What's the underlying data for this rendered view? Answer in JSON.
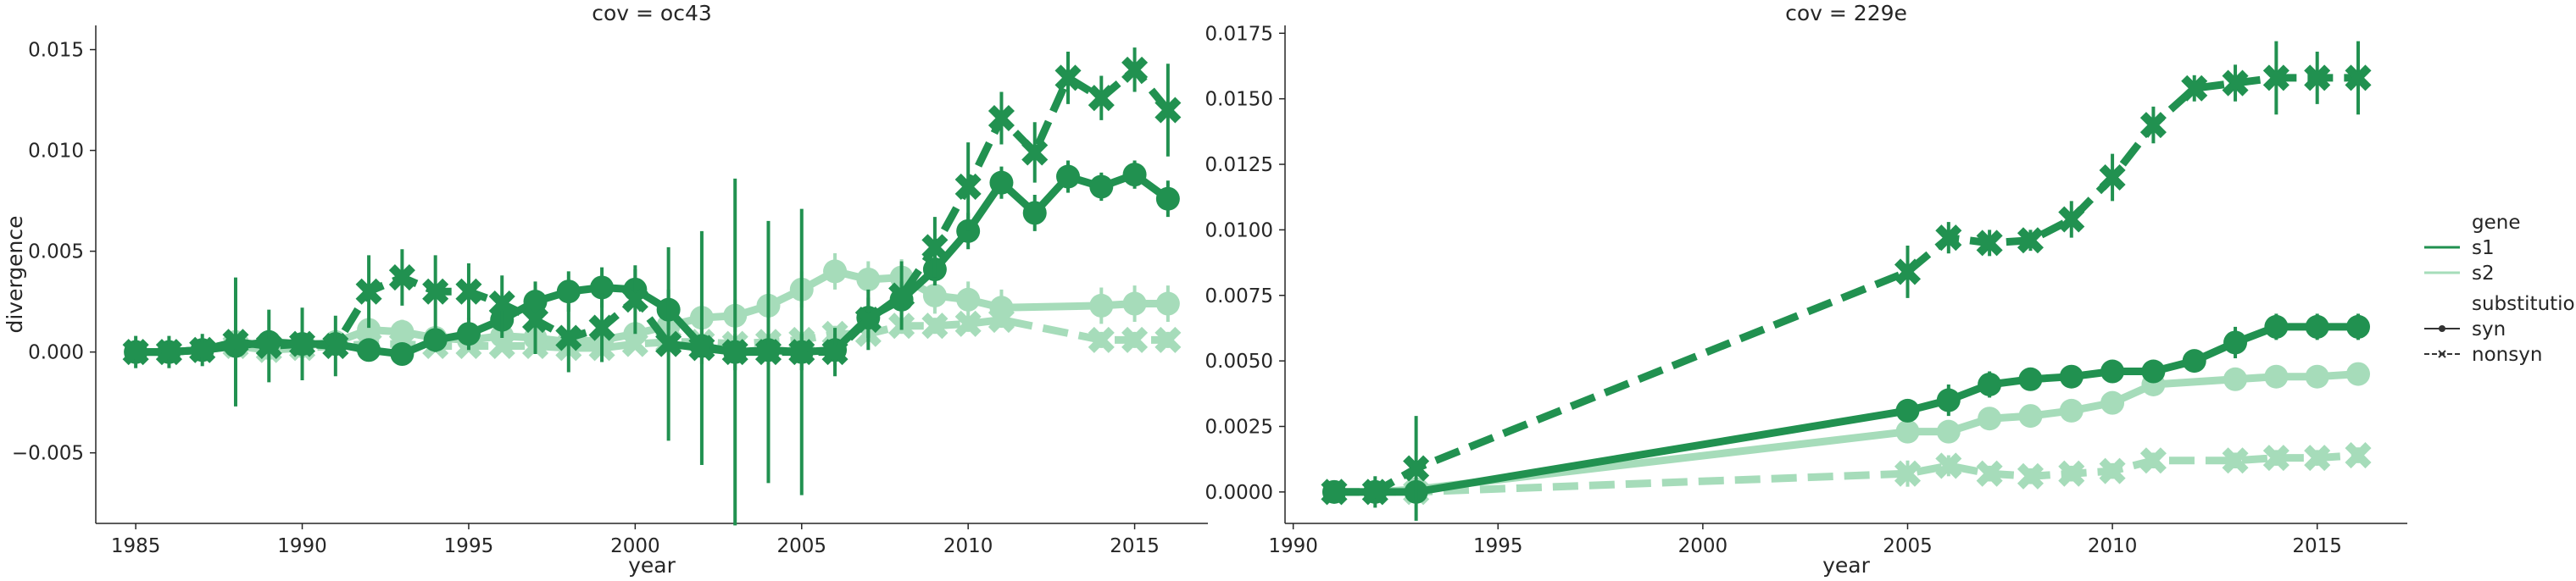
{
  "colors": {
    "s1": "#219150",
    "s2": "#a6dcba",
    "axis": "#262626"
  },
  "legend": {
    "gene_title": "gene",
    "gene_items": [
      {
        "label": "s1",
        "color": "#219150"
      },
      {
        "label": "s2",
        "color": "#a6dcba"
      }
    ],
    "substitution_title": "substitution",
    "substitution_items": [
      {
        "label": "syn",
        "style": "solid-dot"
      },
      {
        "label": "nonsyn",
        "style": "dashed-x"
      }
    ]
  },
  "chart_data": [
    {
      "type": "line",
      "title": "cov = oc43",
      "xlabel": "year",
      "ylabel": "divergence",
      "xlim": [
        1983.8,
        2017.2
      ],
      "ylim": [
        -0.0085,
        0.0162
      ],
      "xticks": [
        1985,
        1990,
        1995,
        2000,
        2005,
        2010,
        2015
      ],
      "yticks": [
        -0.005,
        0.0,
        0.005,
        0.01,
        0.015
      ],
      "ytick_labels": [
        "−0.005",
        "0.000",
        "0.005",
        "0.010",
        "0.015"
      ],
      "grid": false,
      "series": [
        {
          "gene": "s2",
          "substitution": "syn",
          "x": [
            1985,
            1986,
            1987,
            1988,
            1989,
            1990,
            1991,
            1992,
            1993,
            1994,
            1995,
            1996,
            1997,
            1998,
            1999,
            2000,
            2001,
            2002,
            2003,
            2004,
            2005,
            2006,
            2007,
            2008,
            2009,
            2010,
            2011,
            2014,
            2015,
            2016
          ],
          "y": [
            0.0,
            0.0,
            0.0001,
            0.0005,
            0.0002,
            0.0003,
            0.0005,
            0.0011,
            0.001,
            0.0007,
            0.0006,
            0.0008,
            0.0007,
            0.0005,
            0.0006,
            0.0009,
            0.0013,
            0.0017,
            0.0018,
            0.0023,
            0.0031,
            0.004,
            0.0036,
            0.0037,
            0.0028,
            0.0026,
            0.0022,
            0.0023,
            0.0024,
            0.0024
          ],
          "err": [
            0.0003,
            0.0003,
            0.0003,
            0.0005,
            0.0003,
            0.0003,
            0.0004,
            0.0006,
            0.0006,
            0.0005,
            0.0005,
            0.0005,
            0.0005,
            0.0005,
            0.0005,
            0.0006,
            0.0007,
            0.0008,
            0.0008,
            0.0009,
            0.0009,
            0.0009,
            0.0009,
            0.0009,
            0.0009,
            0.0009,
            0.0009,
            0.0009,
            0.0009,
            0.0009
          ]
        },
        {
          "gene": "s2",
          "substitution": "nonsyn",
          "x": [
            1985,
            1986,
            1987,
            1988,
            1989,
            1990,
            1991,
            1992,
            1993,
            1994,
            1995,
            1996,
            1997,
            1998,
            1999,
            2000,
            2001,
            2002,
            2003,
            2004,
            2005,
            2006,
            2007,
            2008,
            2009,
            2010,
            2011,
            2014,
            2015,
            2016
          ],
          "y": [
            0.0,
            0.0,
            0.0001,
            0.0003,
            0.0001,
            0.0002,
            0.0003,
            0.0004,
            0.0004,
            0.0003,
            0.0003,
            0.0003,
            0.0003,
            0.0002,
            0.0002,
            0.0004,
            0.0005,
            0.0005,
            0.0004,
            0.0005,
            0.0006,
            0.0009,
            0.0009,
            0.0013,
            0.0013,
            0.0014,
            0.0016,
            0.0006,
            0.0006,
            0.0006
          ],
          "err": [
            0.0002,
            0.0002,
            0.0002,
            0.0003,
            0.0002,
            0.0002,
            0.0003,
            0.0003,
            0.0003,
            0.0003,
            0.0003,
            0.0003,
            0.0003,
            0.0003,
            0.0003,
            0.0003,
            0.0003,
            0.0003,
            0.0003,
            0.0003,
            0.0004,
            0.0004,
            0.0004,
            0.0004,
            0.0004,
            0.0004,
            0.0004,
            0.0004,
            0.0004,
            0.0004
          ]
        },
        {
          "gene": "s1",
          "substitution": "syn",
          "x": [
            1985,
            1986,
            1987,
            1988,
            1989,
            1990,
            1991,
            1992,
            1993,
            1994,
            1995,
            1996,
            1997,
            1998,
            1999,
            2000,
            2001,
            2002,
            2003,
            2004,
            2005,
            2006,
            2007,
            2008,
            2009,
            2010,
            2011,
            2012,
            2013,
            2014,
            2015,
            2016
          ],
          "y": [
            0.0,
            0.0,
            0.0001,
            0.0003,
            0.0005,
            0.0004,
            0.0004,
            0.0001,
            -0.0001,
            0.0006,
            0.0009,
            0.0016,
            0.0025,
            0.003,
            0.0032,
            0.0031,
            0.0021,
            0.0003,
            0.0,
            0.0001,
            0.0,
            0.0001,
            0.0017,
            0.0026,
            0.0041,
            0.006,
            0.0084,
            0.0069,
            0.0087,
            0.0082,
            0.0088,
            0.0076
          ],
          "err": [
            0.0002,
            0.0002,
            0.0003,
            0.0004,
            0.0004,
            0.0004,
            0.0004,
            0.0004,
            0.0004,
            0.0006,
            0.0008,
            0.0009,
            0.001,
            0.001,
            0.001,
            0.001,
            0.001,
            0.0009,
            0.0009,
            0.0009,
            0.0009,
            0.0008,
            0.001,
            0.0009,
            0.0008,
            0.0009,
            0.0008,
            0.0009,
            0.0008,
            0.0007,
            0.0007,
            0.0009
          ]
        },
        {
          "gene": "s1",
          "substitution": "nonsyn",
          "x": [
            1985,
            1986,
            1987,
            1988,
            1989,
            1990,
            1991,
            1992,
            1993,
            1994,
            1995,
            1996,
            1997,
            1998,
            1999,
            2000,
            2001,
            2002,
            2003,
            2004,
            2005,
            2006,
            2007,
            2008,
            2009,
            2010,
            2011,
            2012,
            2013,
            2014,
            2015,
            2016
          ],
          "y": [
            0.0,
            0.0,
            0.0001,
            0.0005,
            0.0003,
            0.0004,
            0.0003,
            0.003,
            0.0037,
            0.003,
            0.003,
            0.0024,
            0.0016,
            0.0007,
            0.0012,
            0.0026,
            0.0004,
            0.0002,
            0.0,
            0.0,
            0.0,
            0.0,
            0.0016,
            0.0028,
            0.0052,
            0.0082,
            0.0116,
            0.0099,
            0.0136,
            0.0126,
            0.014,
            0.012
          ],
          "err": [
            0.0008,
            0.0008,
            0.0008,
            0.0032,
            0.0018,
            0.0018,
            0.0015,
            0.0018,
            0.0014,
            0.0018,
            0.0014,
            0.0014,
            0.0017,
            0.0017,
            0.0017,
            0.0017,
            0.0048,
            0.0058,
            0.0086,
            0.0065,
            0.0071,
            0.0012,
            0.0015,
            0.0017,
            0.0015,
            0.0022,
            0.0013,
            0.0015,
            0.0013,
            0.0011,
            0.0011,
            0.0023
          ]
        }
      ]
    },
    {
      "type": "line",
      "title": "cov = 229e",
      "xlabel": "year",
      "ylabel": "",
      "xlim": [
        1989.8,
        2017.2
      ],
      "ylim": [
        -0.0012,
        0.0178
      ],
      "xticks": [
        1990,
        1995,
        2000,
        2005,
        2010,
        2015
      ],
      "yticks": [
        0.0,
        0.0025,
        0.005,
        0.0075,
        0.01,
        0.0125,
        0.015,
        0.0175
      ],
      "ytick_labels": [
        "0.0000",
        "0.0025",
        "0.0050",
        "0.0075",
        "0.0100",
        "0.0125",
        "0.0150",
        "0.0175"
      ],
      "grid": false,
      "series": [
        {
          "gene": "s2",
          "substitution": "syn",
          "x": [
            1991,
            1992,
            1993,
            2005,
            2006,
            2007,
            2008,
            2009,
            2010,
            2011,
            2013,
            2014,
            2015,
            2016
          ],
          "y": [
            0.0,
            0.0,
            0.0001,
            0.0023,
            0.0023,
            0.0028,
            0.0029,
            0.0031,
            0.0034,
            0.0041,
            0.0043,
            0.0044,
            0.0044,
            0.0045
          ],
          "err": [
            0.0002,
            0.0002,
            0.0002,
            0.0003,
            0.0003,
            0.0003,
            0.0003,
            0.0003,
            0.0003,
            0.0003,
            0.0003,
            0.0003,
            0.0003,
            0.0003
          ]
        },
        {
          "gene": "s2",
          "substitution": "nonsyn",
          "x": [
            1991,
            1992,
            1993,
            2005,
            2006,
            2007,
            2008,
            2009,
            2010,
            2011,
            2013,
            2014,
            2015,
            2016
          ],
          "y": [
            0.0,
            0.0,
            0.0,
            0.0007,
            0.001,
            0.0007,
            0.0006,
            0.0007,
            0.0008,
            0.0012,
            0.0012,
            0.0013,
            0.0013,
            0.0014
          ],
          "err": [
            0.0002,
            0.0002,
            0.0002,
            0.0005,
            0.0004,
            0.0003,
            0.0003,
            0.0003,
            0.0003,
            0.0003,
            0.0003,
            0.0003,
            0.0003,
            0.0003
          ]
        },
        {
          "gene": "s1",
          "substitution": "syn",
          "x": [
            1991,
            1992,
            1993,
            2005,
            2006,
            2007,
            2008,
            2009,
            2010,
            2011,
            2012,
            2013,
            2014,
            2015,
            2016
          ],
          "y": [
            0.0,
            0.0,
            0.0,
            0.0031,
            0.0035,
            0.0041,
            0.0043,
            0.0044,
            0.0046,
            0.0046,
            0.005,
            0.0057,
            0.0063,
            0.0063,
            0.0063
          ],
          "err": [
            0.0002,
            0.0002,
            0.0002,
            0.0004,
            0.0006,
            0.0005,
            0.0004,
            0.0004,
            0.0004,
            0.0004,
            0.0004,
            0.0006,
            0.0005,
            0.0005,
            0.0005
          ]
        },
        {
          "gene": "s1",
          "substitution": "nonsyn",
          "x": [
            1991,
            1992,
            1993,
            2005,
            2006,
            2007,
            2008,
            2009,
            2010,
            2011,
            2012,
            2013,
            2014,
            2015,
            2016
          ],
          "y": [
            0.0,
            0.0,
            0.0009,
            0.0084,
            0.0097,
            0.0095,
            0.0096,
            0.0104,
            0.012,
            0.014,
            0.0154,
            0.0156,
            0.0158,
            0.0158,
            0.0158
          ],
          "err": [
            0.0003,
            0.0006,
            0.002,
            0.001,
            0.0006,
            0.0005,
            0.0004,
            0.0007,
            0.0009,
            0.0007,
            0.0005,
            0.0007,
            0.0014,
            0.001,
            0.0014
          ]
        }
      ]
    }
  ]
}
